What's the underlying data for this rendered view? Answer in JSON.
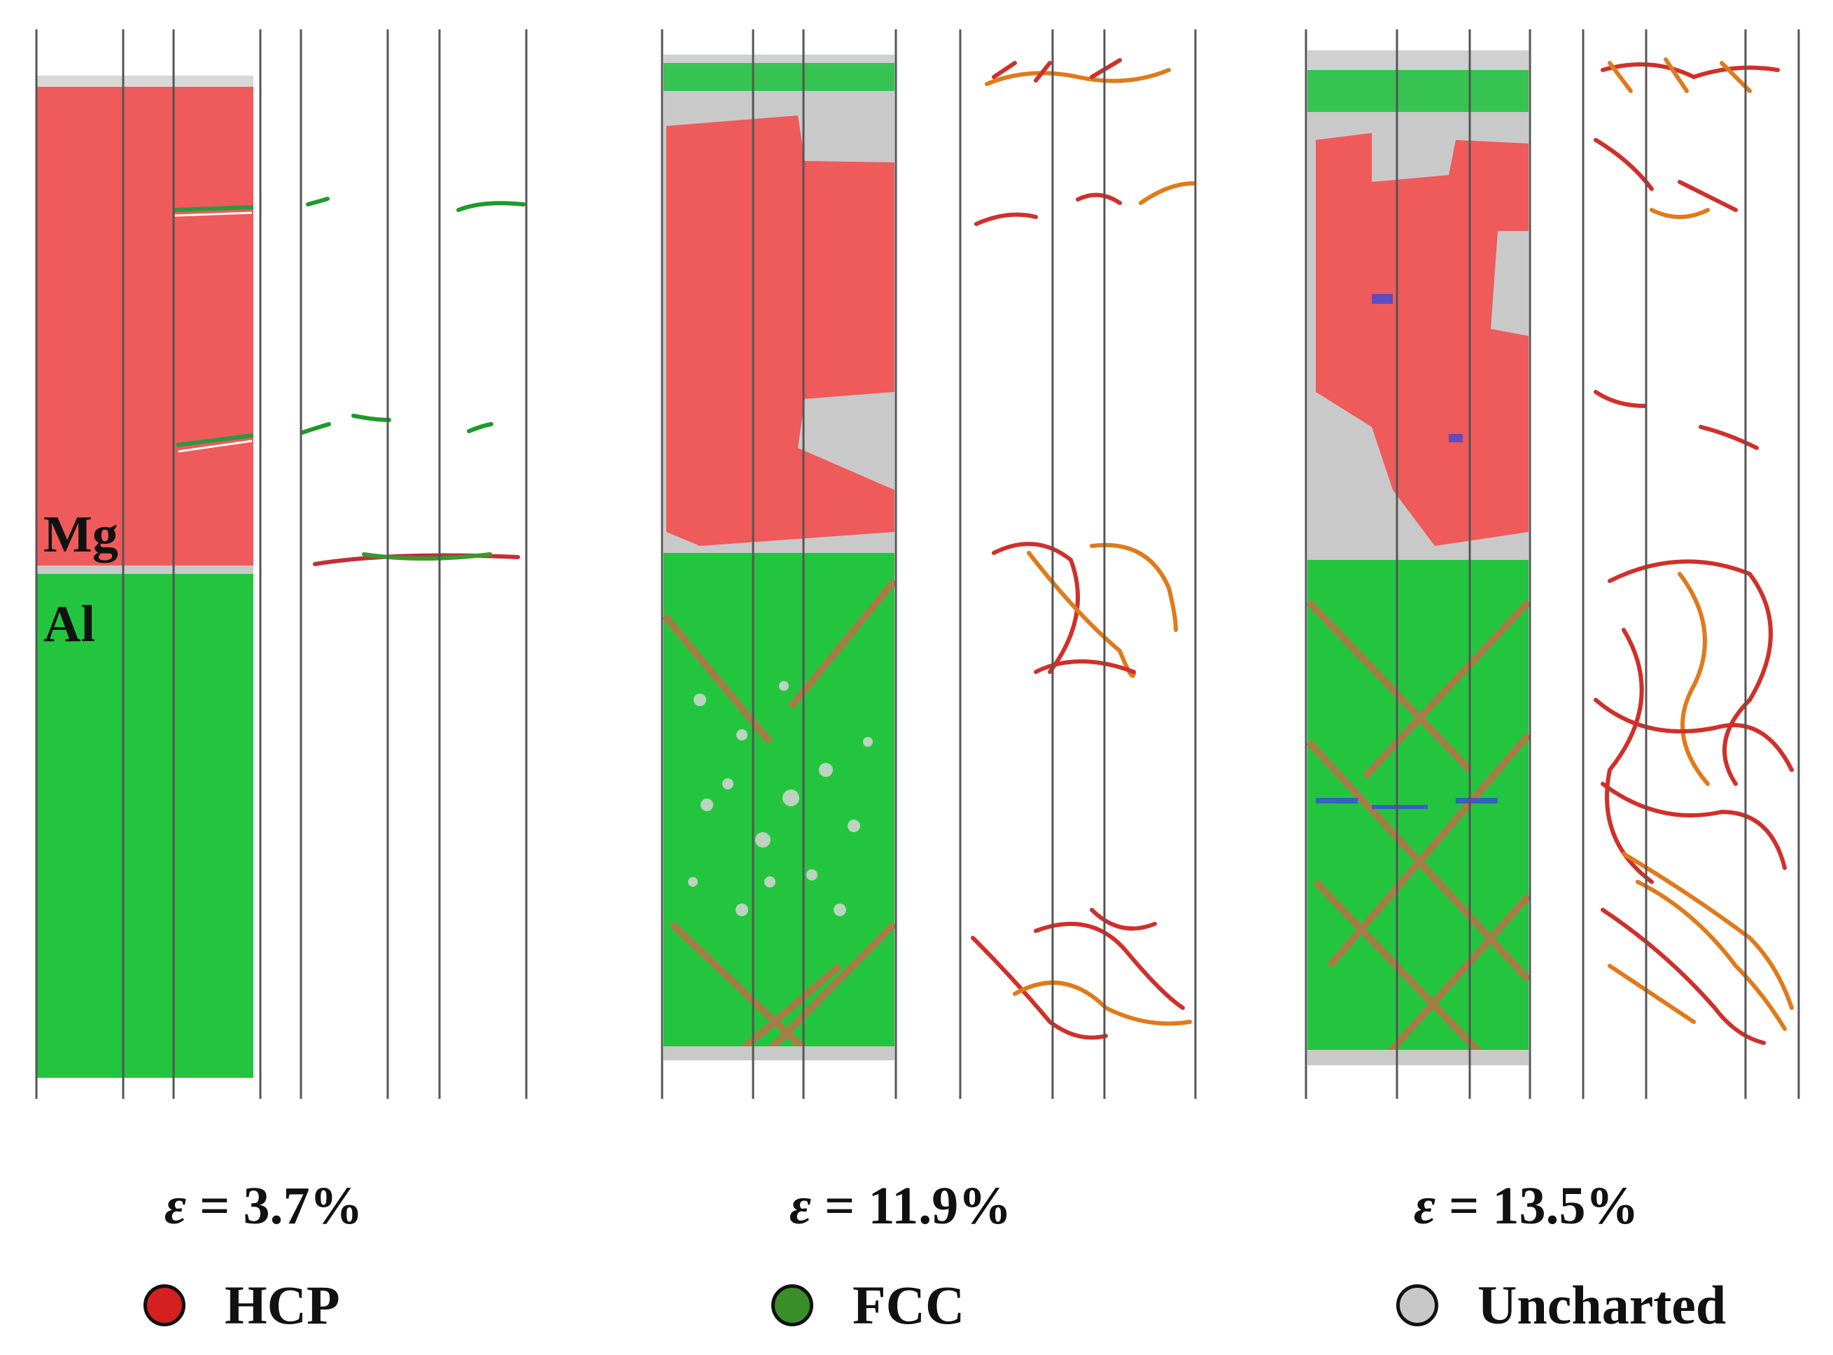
{
  "labels": {
    "top_material": "Mg",
    "bottom_material": "Al"
  },
  "panels": [
    {
      "strain_symbol": "ε",
      "strain_text": "= 3.7%"
    },
    {
      "strain_symbol": "ε",
      "strain_text": "= 11.9%"
    },
    {
      "strain_symbol": "ε",
      "strain_text": "= 13.5%"
    }
  ],
  "legend": [
    {
      "label": "HCP",
      "color": "#d42020"
    },
    {
      "label": "FCC",
      "color": "#3a8f2a"
    },
    {
      "label": "Uncharted",
      "color": "#c8c8c8"
    }
  ],
  "colors": {
    "hcp_region": "#ef5a5a",
    "fcc_region": "#23c53f",
    "uncharted_region": "#c9c9c9",
    "dislocation_red": "#d0302a",
    "dislocation_orange": "#f08a1a"
  }
}
